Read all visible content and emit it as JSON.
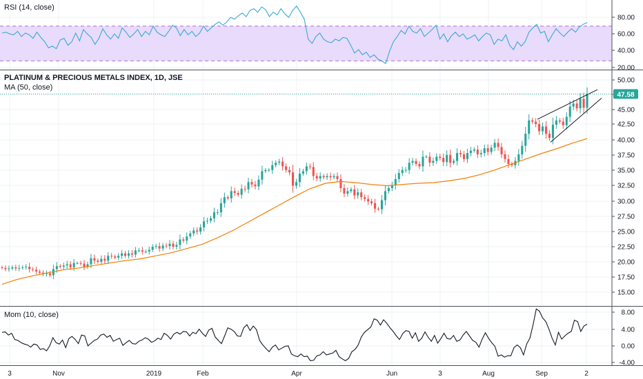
{
  "colors": {
    "up": "#26a69a",
    "down": "#ef5350",
    "ma": "#f57c00",
    "rsi_line": "#36a9d6",
    "rsi_band": "#e9dbfb",
    "rsi_dash": "#b06ad8",
    "mom_line": "#131722",
    "price_tag": "#26a69a",
    "grid": "#edf0f3",
    "pane_border": "#4a4e5a"
  },
  "x_axis": {
    "labels": [
      "3",
      "Nov",
      "2019",
      "Feb",
      "Apr",
      "Jun",
      "3",
      "Aug",
      "Sep",
      "2"
    ]
  },
  "chart_data": [
    {
      "type": "line",
      "title": "RSI (14, close)",
      "ylim": [
        20,
        100
      ],
      "y_ticks": [
        "80.00",
        "60.00",
        "40.00",
        "20.00"
      ],
      "band": [
        30,
        70
      ],
      "series": [
        {
          "name": "RSI",
          "values": [
            62,
            63,
            61,
            60,
            64,
            58,
            62,
            60,
            56,
            63,
            57,
            52,
            45,
            47,
            44,
            54,
            56,
            48,
            52,
            62,
            53,
            66,
            61,
            57,
            49,
            56,
            67,
            60,
            55,
            61,
            56,
            68,
            63,
            57,
            61,
            66,
            58,
            64,
            60,
            70,
            63,
            60,
            58,
            64,
            71,
            68,
            59,
            66,
            60,
            64,
            58,
            62,
            70,
            64,
            68,
            72,
            75,
            71,
            75,
            80,
            78,
            82,
            85,
            81,
            88,
            90,
            86,
            92,
            89,
            81,
            86,
            83,
            90,
            84,
            80,
            88,
            93,
            86,
            78,
            55,
            50,
            58,
            62,
            55,
            52,
            51,
            55,
            53,
            57,
            56,
            48,
            39,
            43,
            37,
            40,
            34,
            37,
            32,
            30,
            27,
            41,
            52,
            58,
            65,
            61,
            70,
            64,
            62,
            67,
            58,
            62,
            66,
            71,
            55,
            61,
            52,
            59,
            63,
            58,
            61,
            55,
            57,
            60,
            53,
            58,
            62,
            60,
            49,
            55,
            53,
            60,
            48,
            43,
            52,
            47,
            52,
            63,
            68,
            72,
            62,
            64,
            52,
            60,
            67,
            62,
            58,
            63,
            67,
            63,
            69,
            72,
            74
          ]
        }
      ]
    },
    {
      "type": "candlestick",
      "title": "PLATINUM & PRECIOUS METALS INDEX, 1D, JSE",
      "subtitle": "MA (50, close)",
      "ylim": [
        12.5,
        51.5
      ],
      "y_ticks": [
        "50.00",
        "47.50",
        "45.00",
        "42.50",
        "40.00",
        "37.50",
        "35.00",
        "32.50",
        "30.00",
        "27.50",
        "25.00",
        "22.50",
        "20.00",
        "17.50",
        "15.00"
      ],
      "last_price": "47.58",
      "close": [
        18.8,
        18.6,
        18.7,
        18.9,
        18.7,
        18.8,
        18.9,
        19.0,
        18.6,
        18.5,
        18.2,
        18.0,
        17.8,
        17.9,
        17.6,
        18.6,
        19.1,
        19.0,
        19.2,
        19.4,
        18.9,
        19.6,
        19.6,
        19.5,
        19.0,
        19.4,
        20.4,
        20.0,
        19.8,
        20.3,
        20.0,
        20.8,
        20.7,
        20.5,
        20.8,
        21.2,
        20.8,
        21.2,
        21.0,
        21.7,
        21.7,
        21.5,
        21.5,
        21.8,
        22.3,
        22.4,
        22.0,
        22.5,
        22.4,
        22.8,
        22.3,
        22.6,
        23.5,
        23.3,
        24.0,
        24.5,
        25.0,
        24.8,
        25.5,
        26.5,
        26.6,
        27.0,
        28.0,
        28.0,
        29.5,
        30.5,
        30.3,
        31.5,
        31.2,
        30.9,
        31.9,
        31.8,
        33.0,
        32.6,
        32.3,
        33.4,
        34.8,
        35.0,
        35.0,
        35.8,
        36.2,
        36.4,
        35.6,
        35.0,
        34.6,
        32.4,
        33.0,
        34.4,
        34.8,
        35.6,
        35.5,
        34.0,
        33.6,
        34.0,
        33.8,
        34.0,
        33.8,
        34.0,
        33.5,
        32.0,
        31.1,
        31.5,
        31.8,
        30.8,
        31.3,
        30.5,
        30.2,
        29.8,
        29.5,
        28.6,
        28.5,
        30.0,
        31.5,
        32.0,
        32.5,
        33.5,
        34.5,
        35.0,
        35.0,
        36.2,
        36.5,
        36.0,
        35.6,
        37.2,
        37.2,
        36.2,
        36.5,
        37.2,
        37.0,
        36.3,
        37.5,
        36.2,
        36.5,
        37.8,
        37.6,
        36.8,
        37.8,
        38.2,
        38.4,
        37.6,
        37.8,
        38.6,
        38.0,
        38.7,
        39.5,
        38.8,
        37.6,
        36.8,
        36.0,
        35.8,
        36.5,
        37.6,
        39.0,
        41.0,
        43.2,
        43.0,
        42.6,
        41.4,
        42.2,
        41.0,
        40.3,
        42.5,
        43.2,
        43.0,
        42.4,
        43.8,
        45.5,
        46.0,
        45.2,
        46.8,
        45.3,
        47.58
      ],
      "series": [
        {
          "name": "MA",
          "values": [
            16.1,
            16.9,
            17.5,
            18.0,
            18.5,
            18.8,
            19.2,
            19.6,
            20.0,
            20.3,
            20.8,
            21.3,
            22.0,
            22.7,
            23.8,
            25.0,
            26.4,
            27.8,
            29.2,
            30.6,
            31.9,
            32.8,
            33.1,
            32.9,
            32.6,
            32.4,
            32.6,
            32.8,
            32.9,
            33.2,
            33.6,
            34.2,
            35.0,
            35.9,
            36.8,
            37.7,
            38.5,
            39.4,
            40.2
          ]
        }
      ]
    },
    {
      "type": "line",
      "title": "Mom (10, close)",
      "ylim": [
        -4.5,
        8.5
      ],
      "y_ticks": [
        "8.00",
        "4.00",
        "0.00",
        "-4.00"
      ],
      "series": [
        {
          "name": "Mom",
          "values": [
            2.8,
            2.9,
            2.2,
            2.6,
            1.2,
            1.0,
            0.5,
            0.2,
            0.0,
            -0.5,
            0.2,
            0.0,
            -1.0,
            -0.8,
            -1.3,
            -0.2,
            1.6,
            0.5,
            0.2,
            1.1,
            -0.6,
            1.4,
            1.9,
            1.2,
            0.3,
            2.2,
            2.0,
            -0.2,
            0.4,
            1.0,
            1.3,
            2.2,
            2.4,
            1.7,
            2.1,
            0.8,
            1.2,
            1.5,
            -0.1,
            0.5,
            1.0,
            0.3,
            0.2,
            0.8,
            1.1,
            1.6,
            1.3,
            0.6,
            0.9,
            1.5,
            1.2,
            2.6,
            2.1,
            1.3,
            2.4,
            2.8,
            2.4,
            3.0,
            2.9,
            2.0,
            2.8,
            2.5,
            3.5,
            2.6,
            1.9,
            3.3,
            3.7,
            1.8,
            1.0,
            0.3,
            2.0,
            3.8,
            3.5,
            3.0,
            2.0,
            1.9,
            3.8,
            4.5,
            3.2,
            4.2,
            3.4,
            1.0,
            0.0,
            -0.8,
            -1.5,
            -0.5,
            0.0,
            -1.1,
            -0.7,
            -0.3,
            -0.2,
            -2.0,
            -2.4,
            -2.6,
            -2.0,
            -2.6,
            -2.5,
            -3.5,
            -3.4,
            -2.4,
            -2.2,
            -1.5,
            -2.2,
            -2.0,
            -1.8,
            -1.2,
            -2.6,
            -3.1,
            -3.5,
            -3.0,
            -1.5,
            -1.0,
            0.0,
            1.8,
            2.8,
            3.4,
            4.0,
            5.8,
            5.5,
            4.4,
            5.6,
            4.8,
            3.8,
            3.0,
            2.0,
            1.2,
            2.5,
            3.2,
            3.0,
            1.5,
            2.7,
            0.8,
            1.5,
            2.9,
            1.7,
            0.8,
            2.1,
            0.4,
            1.4,
            2.6,
            1.4,
            1.3,
            2.1,
            0.8,
            1.1,
            2.2,
            3.0,
            2.0,
            1.0,
            0.6,
            -0.5,
            1.3,
            2.7,
            1.5,
            0.5,
            -0.3,
            -2.5,
            -2.2,
            -2.7,
            -2.4,
            -2.4,
            -0.6,
            0.0,
            -0.6,
            -2.2,
            0.2,
            1.5,
            4.5,
            8.0,
            7.5,
            6.0,
            5.2,
            3.5,
            1.5,
            0.0,
            2.8,
            1.3,
            2.0,
            2.6,
            3.0,
            5.5,
            5.2,
            3.0,
            4.2,
            4.6
          ]
        }
      ]
    }
  ]
}
